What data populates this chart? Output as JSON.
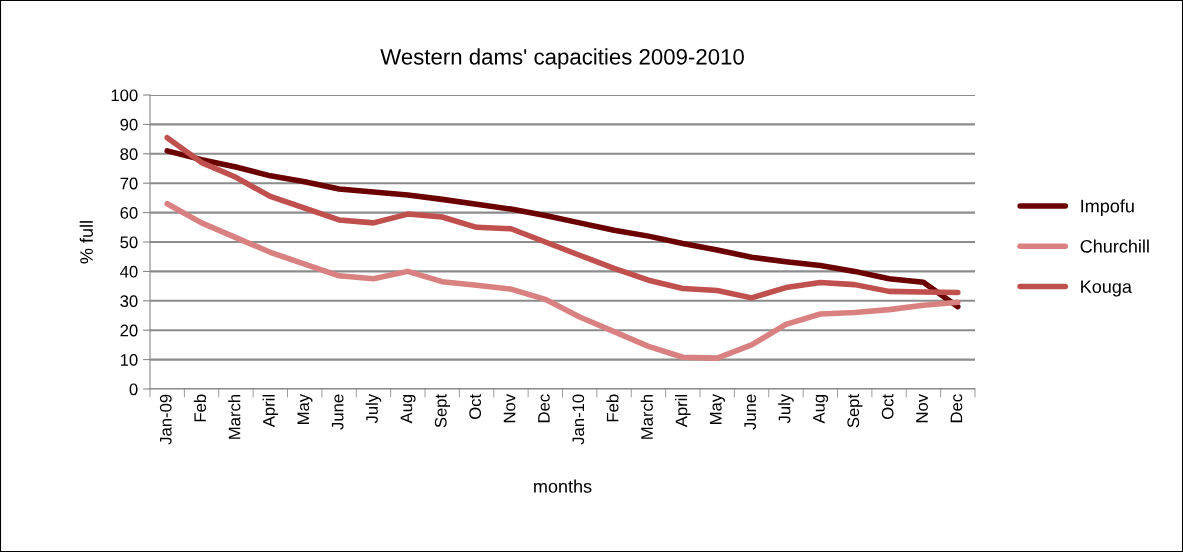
{
  "chart_data": {
    "type": "line",
    "title": "Western dams' capacities 2009-2010",
    "xlabel": "months",
    "ylabel": "% full",
    "categories": [
      "Jan-09",
      "Feb",
      "March",
      "April",
      "May",
      "June",
      "July",
      "Aug",
      "Sept",
      "Oct",
      "Nov",
      "Dec",
      "Jan-10",
      "Feb",
      "March",
      "April",
      "May",
      "June",
      "July",
      "Aug",
      "Sept",
      "Oct",
      "Nov",
      "Dec"
    ],
    "series": [
      {
        "name": "Impofu",
        "color": "#6b0000",
        "values": [
          81,
          78,
          75.5,
          72.5,
          70.5,
          68,
          67,
          66,
          64.5,
          62.8,
          61.2,
          59,
          56.5,
          54,
          52,
          49.5,
          47.3,
          44.8,
          43.3,
          42,
          40,
          37.5,
          36.3,
          28
        ]
      },
      {
        "name": "Churchill",
        "color": "#d98080",
        "values": [
          63,
          56.5,
          51.5,
          46.5,
          42.5,
          38.5,
          37.5,
          40,
          36.5,
          35.3,
          34,
          30.5,
          24.5,
          19.5,
          14.5,
          10.8,
          10.5,
          15,
          22,
          25.5,
          26,
          27,
          28.5,
          29.5
        ]
      },
      {
        "name": "Kouga",
        "color": "#c0504d",
        "values": [
          85.5,
          77,
          72,
          65.5,
          61.5,
          57.5,
          56.5,
          59.5,
          58.5,
          55,
          54.5,
          50,
          45.5,
          41,
          37,
          34.2,
          33.5,
          31,
          34.5,
          36.2,
          35.5,
          33.2,
          33,
          32.8
        ]
      }
    ],
    "ylim": [
      0,
      100
    ],
    "yticks": [
      0,
      10,
      20,
      30,
      40,
      50,
      60,
      70,
      80,
      90,
      100
    ],
    "grid": "y",
    "legend": "right",
    "marker": "none",
    "line_style": "solid"
  }
}
